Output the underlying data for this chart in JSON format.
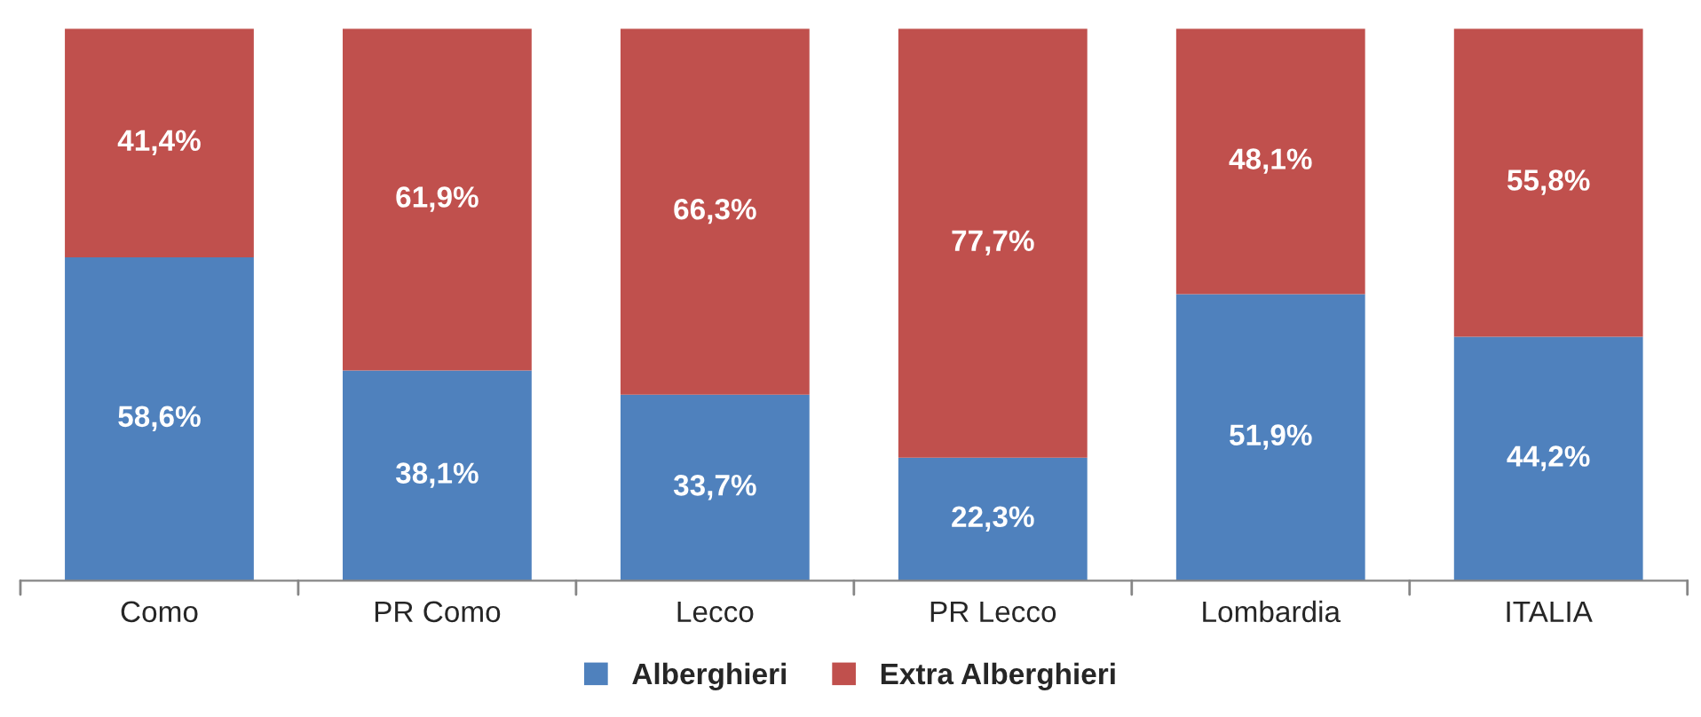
{
  "chart_data": {
    "type": "bar",
    "stacked": true,
    "categories": [
      "Como",
      "PR Como",
      "Lecco",
      "PR Lecco",
      "Lombardia",
      "ITALIA"
    ],
    "series": [
      {
        "name": "Alberghieri",
        "color": "#4f81bd",
        "values": [
          58.6,
          38.1,
          33.7,
          22.3,
          51.9,
          44.2
        ],
        "value_labels": [
          "58,6%",
          "38,1%",
          "33,7%",
          "22,3%",
          "51,9%",
          "44,2%"
        ]
      },
      {
        "name": "Extra Alberghieri",
        "color": "#c0504d",
        "values": [
          41.4,
          61.9,
          66.3,
          77.7,
          48.1,
          55.8
        ],
        "value_labels": [
          "41,4%",
          "61,9%",
          "66,3%",
          "77,7%",
          "48,1%",
          "55,8%"
        ]
      }
    ],
    "legend": "bottom"
  }
}
